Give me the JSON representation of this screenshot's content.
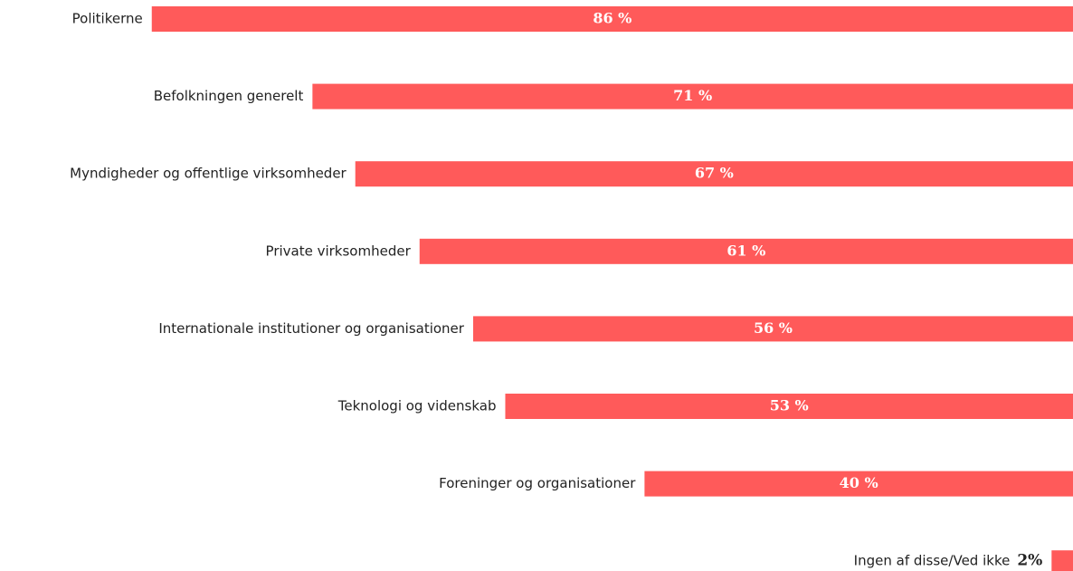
{
  "chart_data": {
    "type": "bar",
    "orientation": "horizontal",
    "categories": [
      "Politikerne",
      "Befolkningen generelt",
      "Myndigheder og offentlige virksomheder",
      "Private virksomheder",
      "Internationale institutioner og organisationer",
      "Teknologi og videnskab",
      "Foreninger og organisationer",
      "Ingen af disse/Ved ikke"
    ],
    "values": [
      86,
      71,
      67,
      61,
      56,
      53,
      40,
      2
    ],
    "value_labels": [
      "86 %",
      "71 %",
      "67 %",
      "61 %",
      "56 %",
      "53 %",
      "40 %",
      "2%"
    ],
    "color": "#ff5a5a",
    "xlim": [
      0,
      100
    ]
  }
}
